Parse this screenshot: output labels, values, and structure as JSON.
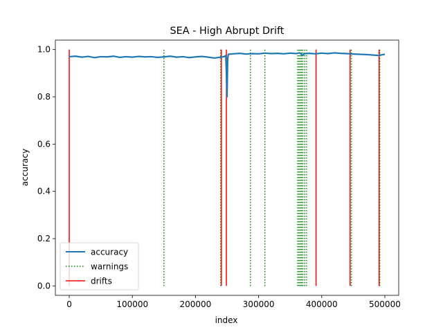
{
  "chart_data": {
    "type": "line",
    "title": "SEA - High Abrupt Drift",
    "xlabel": "index",
    "ylabel": "accuracy",
    "xlim": [
      -22000,
      522000
    ],
    "ylim": [
      -0.04,
      1.04
    ],
    "xticks": [
      0,
      100000,
      200000,
      300000,
      400000,
      500000
    ],
    "xtick_labels": [
      "0",
      "100000",
      "200000",
      "300000",
      "400000",
      "500000"
    ],
    "yticks": [
      0.0,
      0.2,
      0.4,
      0.6,
      0.8,
      1.0
    ],
    "ytick_labels": [
      "0.0",
      "0.2",
      "0.4",
      "0.6",
      "0.8",
      "1.0"
    ],
    "grid": false,
    "legend": {
      "position": "lower-left",
      "entries": [
        {
          "label": "accuracy",
          "style": "solid",
          "color": "#1f77b4"
        },
        {
          "label": "warnings",
          "style": "dotted",
          "color": "#008000"
        },
        {
          "label": "drifts",
          "style": "solid",
          "color": "#ff0000"
        }
      ]
    },
    "series": [
      {
        "name": "accuracy",
        "color": "#1f77b4",
        "x": [
          0,
          10000,
          20000,
          30000,
          40000,
          50000,
          60000,
          70000,
          80000,
          90000,
          100000,
          110000,
          120000,
          130000,
          140000,
          150000,
          160000,
          170000,
          180000,
          190000,
          200000,
          210000,
          220000,
          230000,
          240000,
          245000,
          248000,
          249000,
          250000,
          251000,
          252000,
          260000,
          270000,
          280000,
          290000,
          300000,
          310000,
          320000,
          330000,
          340000,
          350000,
          360000,
          365000,
          370000,
          372000,
          380000,
          390000,
          400000,
          410000,
          420000,
          430000,
          440000,
          450000,
          460000,
          470000,
          480000,
          490000,
          500000
        ],
        "y": [
          0.97,
          0.972,
          0.968,
          0.971,
          0.966,
          0.97,
          0.969,
          0.972,
          0.967,
          0.97,
          0.968,
          0.971,
          0.969,
          0.97,
          0.967,
          0.969,
          0.972,
          0.968,
          0.97,
          0.966,
          0.969,
          0.971,
          0.968,
          0.964,
          0.968,
          0.97,
          0.975,
          0.9,
          0.8,
          0.96,
          0.98,
          0.982,
          0.984,
          0.981,
          0.983,
          0.982,
          0.985,
          0.983,
          0.984,
          0.982,
          0.985,
          0.983,
          0.986,
          0.975,
          0.982,
          0.984,
          0.982,
          0.985,
          0.983,
          0.986,
          0.984,
          0.983,
          0.981,
          0.98,
          0.979,
          0.977,
          0.975,
          0.98
        ]
      }
    ],
    "warnings": [
      150000,
      240000,
      287000,
      310000,
      362000,
      364000,
      366000,
      368000,
      370000,
      373000,
      376000,
      447000,
      492000
    ],
    "drifts": [
      0,
      241000,
      249000,
      391000,
      445000,
      491000
    ]
  }
}
